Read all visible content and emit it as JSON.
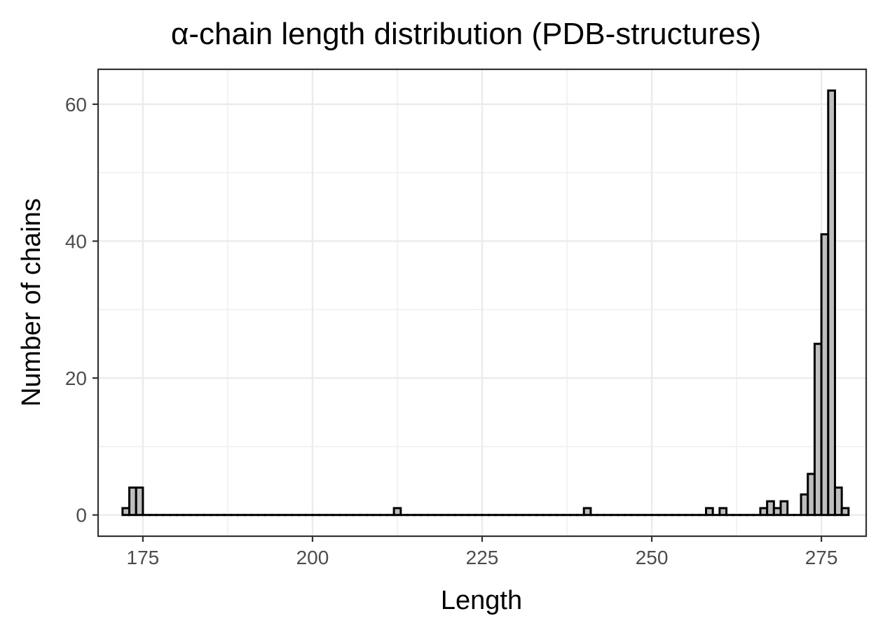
{
  "chart_data": {
    "type": "bar",
    "title": "α-chain length distribution (PDB-structures)",
    "xlabel": "Length",
    "ylabel": "Number of chains",
    "xlim": [
      168.4,
      281.6
    ],
    "ylim": [
      -3.1,
      65.1
    ],
    "x_ticks": [
      175,
      200,
      225,
      250,
      275
    ],
    "y_ticks": [
      0,
      20,
      40,
      60
    ],
    "y_minor_ticks": [
      10,
      30,
      50
    ],
    "x_minor_ticks": [
      187.5,
      212.5,
      237.5,
      262.5
    ],
    "grid": true,
    "legend": "none",
    "bin_width": 1,
    "bin_start": 172,
    "counts": [
      1,
      4,
      4,
      0,
      0,
      0,
      0,
      0,
      0,
      0,
      0,
      0,
      0,
      0,
      0,
      0,
      0,
      0,
      0,
      0,
      0,
      0,
      0,
      0,
      0,
      0,
      0,
      0,
      0,
      0,
      0,
      0,
      0,
      0,
      0,
      0,
      0,
      0,
      0,
      0,
      1,
      0,
      0,
      0,
      0,
      0,
      0,
      0,
      0,
      0,
      0,
      0,
      0,
      0,
      0,
      0,
      0,
      0,
      0,
      0,
      0,
      0,
      0,
      0,
      0,
      0,
      0,
      0,
      1,
      0,
      0,
      0,
      0,
      0,
      0,
      0,
      0,
      0,
      0,
      0,
      0,
      0,
      0,
      0,
      0,
      0,
      1,
      0,
      1,
      0,
      0,
      0,
      0,
      0,
      1,
      2,
      1,
      2,
      0,
      0,
      3,
      6,
      25,
      41,
      62,
      4,
      1
    ],
    "colors": {
      "bar_fill": "#bebebe",
      "bar_stroke": "#000000",
      "grid": "#ebebeb",
      "border": "#333333",
      "tick_text": "#4d4d4d"
    }
  }
}
